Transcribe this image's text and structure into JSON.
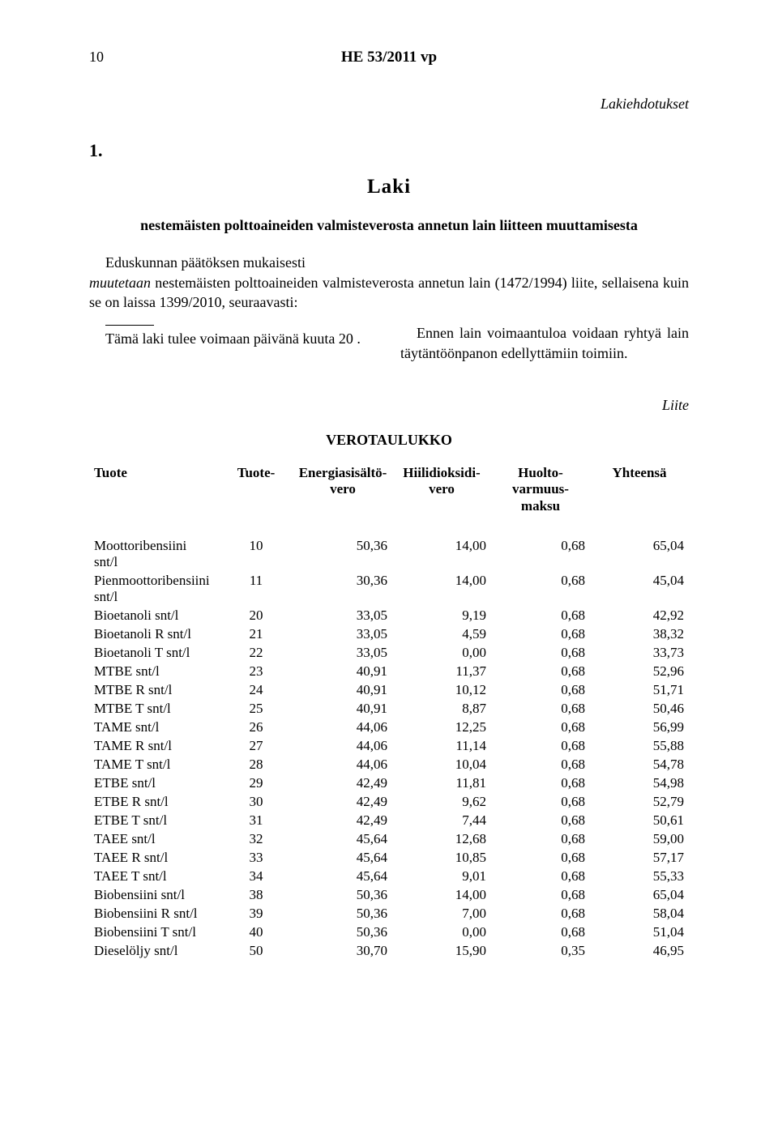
{
  "page_number": "10",
  "doc_id": "HE 53/2011 vp",
  "section_label": "Lakiehdotukset",
  "law_number": "1.",
  "law_heading": "Laki",
  "law_title": "nestemäisten polttoaineiden valmisteverosta annetun lain liitteen muuttamisesta",
  "preamble_plain1": "Eduskunnan päätöksen mukaisesti",
  "preamble_italic": "muutetaan",
  "preamble_plain2": " nestemäisten polttoaineiden valmisteverosta annetun lain (1472/1994) liite, sellaisena kuin se on laissa 1399/2010, seuraavasti:",
  "col_left": "Tämä laki tulee voimaan    päivänä      kuuta 20  .",
  "col_right": "Ennen lain voimaantuloa voidaan ryhtyä lain täytäntöönpanon edellyttämiin toimiin.",
  "liite_label": "Liite",
  "table_title": "VEROTAULUKKO",
  "headers": {
    "tuote": "Tuote",
    "tuoteryhma": "Tuote-",
    "energia": "Energiasisältö-\nvero",
    "hiili": "Hiilidioksidi-\nvero",
    "huolto": "Huolto-\nvarmuus-\nmaksu",
    "yht": "Yhteensä"
  },
  "rows": [
    {
      "label": "Moottoribensiini snt/l",
      "n": "10",
      "e": "50,36",
      "h": "14,00",
      "v": "0,68",
      "y": "65,04"
    },
    {
      "label": "Pienmoottoribensiini snt/l",
      "n": "11",
      "e": "30,36",
      "h": "14,00",
      "v": "0,68",
      "y": "45,04"
    },
    {
      "label": "Bioetanoli snt/l",
      "n": "20",
      "e": "33,05",
      "h": "9,19",
      "v": "0,68",
      "y": "42,92"
    },
    {
      "label": "Bioetanoli R snt/l",
      "n": "21",
      "e": "33,05",
      "h": "4,59",
      "v": "0,68",
      "y": "38,32"
    },
    {
      "label": "Bioetanoli T snt/l",
      "n": "22",
      "e": "33,05",
      "h": "0,00",
      "v": "0,68",
      "y": "33,73"
    },
    {
      "label": "MTBE snt/l",
      "n": "23",
      "e": "40,91",
      "h": "11,37",
      "v": "0,68",
      "y": "52,96"
    },
    {
      "label": "MTBE R snt/l",
      "n": "24",
      "e": "40,91",
      "h": "10,12",
      "v": "0,68",
      "y": "51,71"
    },
    {
      "label": "MTBE T snt/l",
      "n": "25",
      "e": "40,91",
      "h": "8,87",
      "v": "0,68",
      "y": "50,46"
    },
    {
      "label": "TAME snt/l",
      "n": "26",
      "e": "44,06",
      "h": "12,25",
      "v": "0,68",
      "y": "56,99"
    },
    {
      "label": "TAME R snt/l",
      "n": "27",
      "e": "44,06",
      "h": "11,14",
      "v": "0,68",
      "y": "55,88"
    },
    {
      "label": "TAME T snt/l",
      "n": "28",
      "e": "44,06",
      "h": "10,04",
      "v": "0,68",
      "y": "54,78"
    },
    {
      "label": "ETBE snt/l",
      "n": "29",
      "e": "42,49",
      "h": "11,81",
      "v": "0,68",
      "y": "54,98"
    },
    {
      "label": "ETBE R snt/l",
      "n": "30",
      "e": "42,49",
      "h": "9,62",
      "v": "0,68",
      "y": "52,79"
    },
    {
      "label": "ETBE T snt/l",
      "n": "31",
      "e": "42,49",
      "h": "7,44",
      "v": "0,68",
      "y": "50,61"
    },
    {
      "label": "TAEE snt/l",
      "n": "32",
      "e": "45,64",
      "h": "12,68",
      "v": "0,68",
      "y": "59,00"
    },
    {
      "label": "TAEE R snt/l",
      "n": "33",
      "e": "45,64",
      "h": "10,85",
      "v": "0,68",
      "y": "57,17"
    },
    {
      "label": "TAEE T snt/l",
      "n": "34",
      "e": "45,64",
      "h": "9,01",
      "v": "0,68",
      "y": "55,33"
    },
    {
      "label": "Biobensiini snt/l",
      "n": "38",
      "e": "50,36",
      "h": "14,00",
      "v": "0,68",
      "y": "65,04"
    },
    {
      "label": "Biobensiini R snt/l",
      "n": "39",
      "e": "50,36",
      "h": "7,00",
      "v": "0,68",
      "y": "58,04"
    },
    {
      "label": "Biobensiini T snt/l",
      "n": "40",
      "e": "50,36",
      "h": "0,00",
      "v": "0,68",
      "y": "51,04"
    },
    {
      "label": "Dieselöljy snt/l",
      "n": "50",
      "e": "30,70",
      "h": "15,90",
      "v": "0,35",
      "y": "46,95"
    }
  ]
}
